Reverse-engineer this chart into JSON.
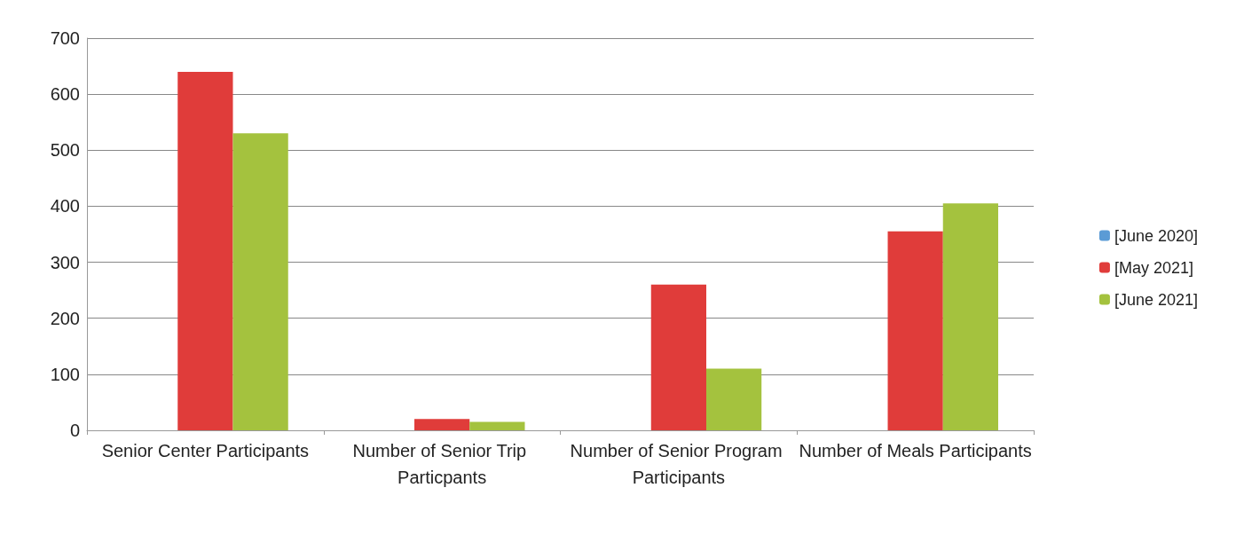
{
  "chart_data": {
    "type": "bar",
    "categories": [
      "Senior Center Participants",
      "Number of Senior Trip Particpants",
      "Number of Senior Program Participants",
      "Number of Meals Participants"
    ],
    "series": [
      {
        "name": "[June 2020]",
        "color": "#5b9bd5",
        "values": [
          null,
          null,
          null,
          null
        ]
      },
      {
        "name": "[May 2021]",
        "color": "#e03c3a",
        "values": [
          640,
          20,
          260,
          355
        ]
      },
      {
        "name": "[June 2021]",
        "color": "#a4c23e",
        "values": [
          530,
          15,
          110,
          405
        ]
      }
    ],
    "ylim": [
      0,
      700
    ],
    "yticks": [
      0,
      100,
      200,
      300,
      400,
      500,
      600,
      700
    ],
    "grid": "y",
    "legend": "right"
  }
}
